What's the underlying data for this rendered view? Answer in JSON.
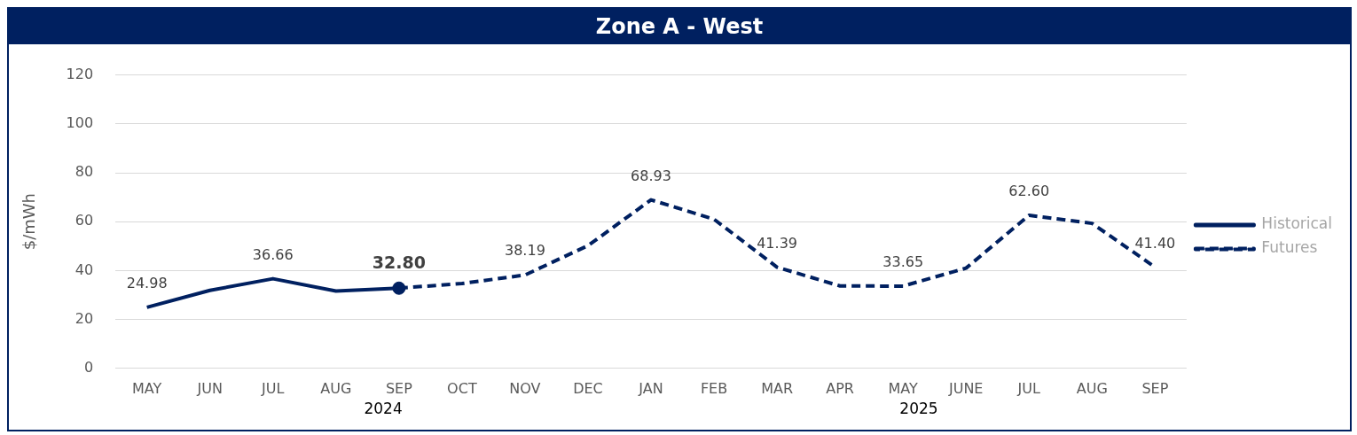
{
  "chart_data": {
    "type": "line",
    "title": "Zone A - West",
    "ylabel": "$/mWh",
    "categories": [
      "MAY",
      "JUN",
      "JUL",
      "AUG",
      "SEP",
      "OCT",
      "NOV",
      "DEC",
      "JAN",
      "FEB",
      "MAR",
      "APR",
      "MAY",
      "JUNE",
      "JUL",
      "AUG",
      "SEP"
    ],
    "ylim": [
      0,
      120
    ],
    "yticks": [
      0,
      20,
      40,
      60,
      80,
      100,
      120
    ],
    "grid": "y",
    "legend": "right",
    "annotations": [
      "2024",
      "2025"
    ],
    "series": [
      {
        "name": "Historical",
        "color": "#002060",
        "line_style": "solid",
        "values": [
          24.98,
          31.9,
          36.66,
          31.6,
          32.8,
          null,
          null,
          null,
          null,
          null,
          null,
          null,
          null,
          null,
          null,
          null,
          null
        ],
        "value_labels": [
          "24.98",
          null,
          "36.66",
          null,
          null,
          null,
          null,
          null,
          null,
          null,
          null,
          null,
          null,
          null,
          null,
          null,
          null
        ]
      },
      {
        "name": "Futures",
        "color": "#002060",
        "line_style": "dashed",
        "values": [
          null,
          null,
          null,
          null,
          32.8,
          34.7,
          38.19,
          50.2,
          68.93,
          61,
          41.39,
          33.7,
          33.65,
          41,
          62.6,
          59.3,
          41.4
        ],
        "value_labels": [
          null,
          null,
          null,
          null,
          null,
          null,
          "38.19",
          null,
          "68.93",
          null,
          "41.39",
          null,
          "33.65",
          null,
          "62.60",
          null,
          "41.40"
        ]
      },
      {
        "type": "scatter",
        "color": "#002060",
        "marker": "circle",
        "values": [
          null,
          null,
          null,
          null,
          32.8,
          null,
          null,
          null,
          null,
          null,
          null,
          null,
          null,
          null,
          null,
          null,
          null
        ],
        "value_labels": [
          null,
          null,
          null,
          null,
          "32.80",
          null,
          null,
          null,
          null,
          null,
          null,
          null,
          null,
          null,
          null,
          null,
          null
        ]
      }
    ]
  }
}
